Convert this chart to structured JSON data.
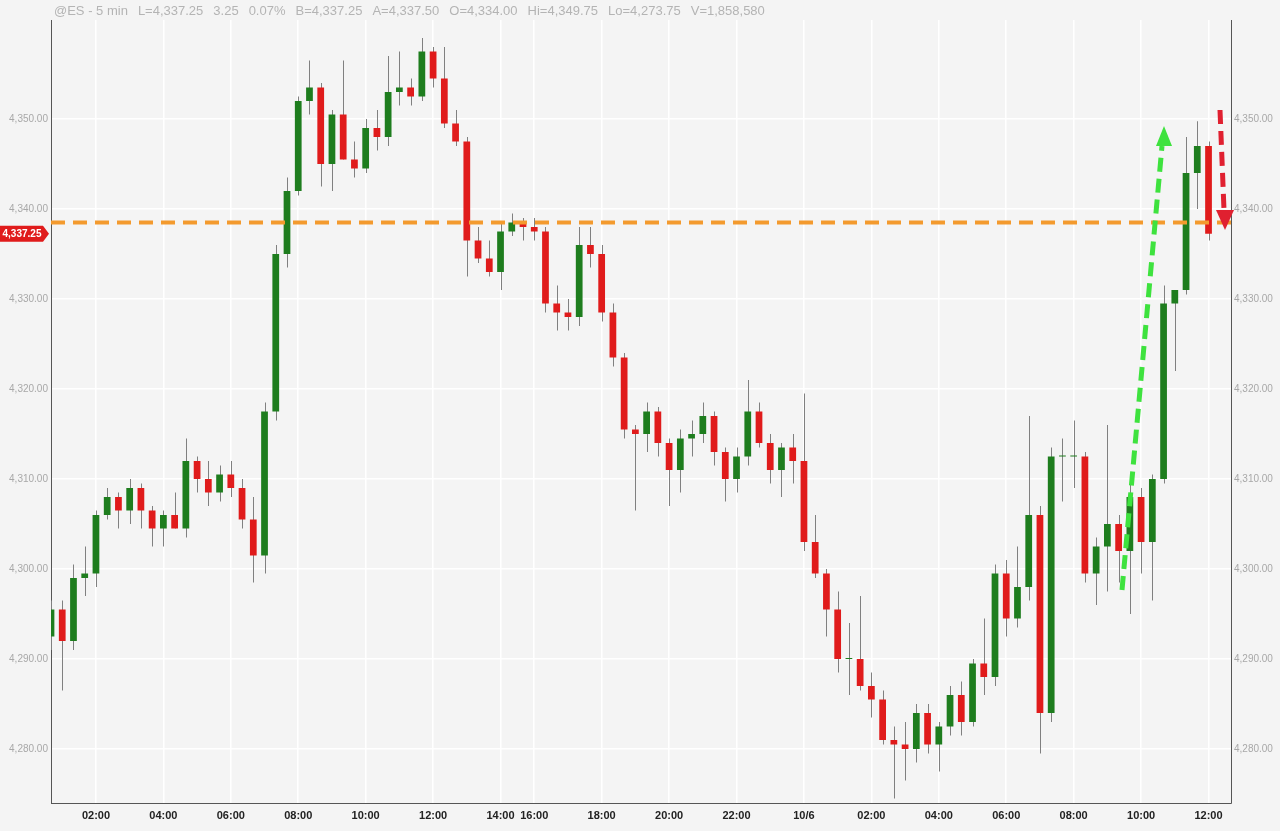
{
  "chart_data": {
    "type": "candlestick",
    "title": "@ES - 5 min",
    "annotations": [
      "L=4,337.25",
      "3.25",
      "0.07%",
      "B=4,337.25",
      "A=4,337.50",
      "O=4,334.00",
      "Hi=4,349.75",
      "Lo=4,273.75",
      "V=1,858,580",
      "4,337.25"
    ],
    "colors": [
      "#1e7d1e",
      "#e01b1b",
      "#1e7d1e",
      "#1e7d1e",
      "#1e7d1e",
      "#1e7d1e",
      "#e01b1b",
      "#1e7d1e",
      "#e01b1b",
      "#e01b1b",
      "#1e7d1e",
      "#e01b1b",
      "#1e7d1e",
      "#e01b1b",
      "#e01b1b",
      "#1e7d1e",
      "#e01b1b",
      "#e01b1b",
      "#e01b1b",
      "#1e7d1e",
      "#1e7d1e",
      "#1e7d1e",
      "#1e7d1e",
      "#1e7d1e",
      "#e01b1b",
      "#1e7d1e",
      "#e01b1b",
      "#e01b1b",
      "#1e7d1e",
      "#e01b1b",
      "#1e7d1e",
      "#1e7d1e",
      "#e01b1b",
      "#1e7d1e",
      "#e01b1b",
      "#e01b1b",
      "#e01b1b",
      "#e01b1b",
      "#e01b1b",
      "#e01b1b",
      "#1e7d1e",
      "#1e7d1e",
      "#e01b1b",
      "#e01b1b",
      "#e01b1b",
      "#e01b1b",
      "#e01b1b",
      "#1e7d1e",
      "#e01b1b",
      "#e01b1b",
      "#e01b1b",
      "#e01b1b",
      "#e01b1b",
      "#1e7d1e",
      "#e01b1b",
      "#e01b1b",
      "#1e7d1e",
      "#1e7d1e",
      "#1e7d1e",
      "#e01b1b",
      "#e01b1b",
      "#1e7d1e",
      "#1e7d1e",
      "#e01b1b",
      "#e01b1b",
      "#1e7d1e",
      "#e01b1b",
      "#e01b1b",
      "#e01b1b",
      "#e01b1b",
      "#e01b1b",
      "#1e7d1e",
      "#e01b1b",
      "#e01b1b",
      "#e01b1b",
      "#e01b1b",
      "#e01b1b",
      "#1e7d1e",
      "#e01b1b",
      "#1e7d1e",
      "#1e7d1e",
      "#e01b1b",
      "#1e7d1e",
      "#e01b1b",
      "#1e7d1e",
      "#e01b1b",
      "#1e7d1e",
      "#1e7d1e",
      "#e01b1b",
      "#1e7d1e",
      "#1e7d1e",
      "#1e7d1e",
      "#e01b1b",
      "#1e7d1e",
      "#1e7d1e",
      "#e01b1b",
      "#1e7d1e",
      "#e01b1b",
      "#1e7d1e",
      "#1e7d1e",
      "#1e7d1e",
      "#1e7d1e",
      "#1e7d1e",
      "#e01b1b",
      null,
      null
    ],
    "categories": [
      null,
      null,
      null,
      null,
      "02:00",
      null,
      null,
      null,
      null,
      null,
      "04:00",
      null,
      null,
      null,
      null,
      null,
      "06:00",
      null,
      null,
      null,
      null,
      null,
      "08:00",
      null,
      null,
      null,
      null,
      null,
      "10:00",
      null,
      null,
      null,
      null,
      null,
      "12:00",
      null,
      null,
      null,
      null,
      null,
      "14:00",
      null,
      null,
      "16:00",
      null,
      null,
      null,
      null,
      null,
      "18:00",
      null,
      null,
      null,
      null,
      null,
      "20:00",
      null,
      null,
      null,
      null,
      null,
      "22:00",
      null,
      null,
      null,
      null,
      null,
      "10/6",
      null,
      null,
      null,
      null,
      null,
      "02:00",
      null,
      null,
      null,
      null,
      null,
      "04:00",
      null,
      null,
      null,
      null,
      null,
      "06:00",
      null,
      null,
      null,
      null,
      null,
      "08:00",
      null,
      null,
      null,
      null,
      null,
      "10:00",
      null,
      null,
      null,
      null,
      null,
      "12:00",
      null,
      null
    ],
    "ohlc": [
      [
        4292.5,
        4296.5,
        4291,
        4295.5
      ],
      [
        4295.5,
        4296.5,
        4286.5,
        4292
      ],
      [
        4292,
        4300.5,
        4291,
        4299
      ],
      [
        4299,
        4302.5,
        4297,
        4299.5
      ],
      [
        4299.5,
        4306.5,
        4298,
        4306
      ],
      [
        4306,
        4309,
        4305.5,
        4308
      ],
      [
        4308,
        4308.5,
        4304.5,
        4306.5
      ],
      [
        4306.5,
        4310,
        4305,
        4309
      ],
      [
        4309,
        4309.5,
        4304.5,
        4306.5
      ],
      [
        4306.5,
        4307,
        4302.5,
        4304.5
      ],
      [
        4304.5,
        4306.5,
        4302.5,
        4306
      ],
      [
        4306,
        4308.5,
        4304.5,
        4304.5
      ],
      [
        4304.5,
        4314.5,
        4303.5,
        4312
      ],
      [
        4312,
        4312.5,
        4308.5,
        4310
      ],
      [
        4310,
        4312,
        4307,
        4308.5
      ],
      [
        4308.5,
        4311.5,
        4307.5,
        4310.5
      ],
      [
        4310.5,
        4312,
        4308,
        4309
      ],
      [
        4309,
        4310,
        4304.5,
        4305.5
      ],
      [
        4305.5,
        4308,
        4298.5,
        4301.5
      ],
      [
        4301.5,
        4318.5,
        4299.5,
        4317.5
      ],
      [
        4317.5,
        4336,
        4316.5,
        4335
      ],
      [
        4335,
        4343.5,
        4333.5,
        4342
      ],
      [
        4342,
        4352.5,
        4341.5,
        4352
      ],
      [
        4352,
        4356.5,
        4350.5,
        4353.5
      ],
      [
        4353.5,
        4354,
        4342.5,
        4345
      ],
      [
        4345,
        4351,
        4342,
        4350.5
      ],
      [
        4350.5,
        4356.5,
        4345.5,
        4345.5
      ],
      [
        4345.5,
        4347.5,
        4343.5,
        4344.5
      ],
      [
        4344.5,
        4350,
        4344,
        4349
      ],
      [
        4349,
        4351,
        4346.5,
        4348
      ],
      [
        4348,
        4357,
        4347,
        4353
      ],
      [
        4353,
        4357.5,
        4351.5,
        4353.5
      ],
      [
        4353.5,
        4354.5,
        4351.5,
        4352.5
      ],
      [
        4352.5,
        4359,
        4352,
        4357.5
      ],
      [
        4357.5,
        4358,
        4353.5,
        4354.5
      ],
      [
        4354.5,
        4358,
        4349,
        4349.5
      ],
      [
        4349.5,
        4351,
        4347,
        4347.5
      ],
      [
        4347.5,
        4348,
        4332.5,
        4336.5
      ],
      [
        4336.5,
        4338,
        4334,
        4334.5
      ],
      [
        4334.5,
        4336.5,
        4332.5,
        4333
      ],
      [
        4333,
        4338.5,
        4331,
        4337.5
      ],
      [
        4337.5,
        4339.5,
        4337,
        4338.5
      ],
      [
        4338.5,
        4339,
        4336.5,
        4338
      ],
      [
        4338,
        4339,
        4336.5,
        4337.5
      ],
      [
        4337.5,
        4338,
        4328.5,
        4329.5
      ],
      [
        4329.5,
        4331.5,
        4326.5,
        4328.5
      ],
      [
        4328.5,
        4330,
        4326.5,
        4328
      ],
      [
        4328,
        4338,
        4327,
        4336
      ],
      [
        4336,
        4338,
        4333.5,
        4335
      ],
      [
        4335,
        4336,
        4327.5,
        4328.5
      ],
      [
        4328.5,
        4329.5,
        4322.5,
        4323.5
      ],
      [
        4323.5,
        4324,
        4314.5,
        4315.5
      ],
      [
        4315.5,
        4316,
        4306.5,
        4315
      ],
      [
        4315,
        4318.5,
        4313,
        4317.5
      ],
      [
        4317.5,
        4318,
        4312.5,
        4314
      ],
      [
        4314,
        4314.5,
        4307,
        4311
      ],
      [
        4311,
        4315.5,
        4308.5,
        4314.5
      ],
      [
        4314.5,
        4316.5,
        4312.5,
        4315
      ],
      [
        4315,
        4318.5,
        4314,
        4317
      ],
      [
        4317,
        4317.5,
        4311.5,
        4313
      ],
      [
        4313,
        4313.5,
        4307.5,
        4310
      ],
      [
        4310,
        4313.5,
        4308.5,
        4312.5
      ],
      [
        4312.5,
        4321,
        4311.5,
        4317.5
      ],
      [
        4317.5,
        4318.5,
        4313.5,
        4314
      ],
      [
        4314,
        4315,
        4309.5,
        4311
      ],
      [
        4311,
        4314,
        4308,
        4313.5
      ],
      [
        4313.5,
        4315,
        4309.5,
        4312
      ],
      [
        4312,
        4319.5,
        4302,
        4303
      ],
      [
        4303,
        4306,
        4299,
        4299.5
      ],
      [
        4299.5,
        4300,
        4292.5,
        4295.5
      ],
      [
        4295.5,
        4297.5,
        4288.5,
        4290
      ],
      [
        4290,
        4294,
        4286,
        4290
      ],
      [
        4290,
        4297,
        4286.5,
        4287
      ],
      [
        4287,
        4288.5,
        4283.5,
        4285.5
      ],
      [
        4285.5,
        4286.5,
        4280.5,
        4281
      ],
      [
        4281,
        4282.5,
        4274.5,
        4280.5
      ],
      [
        4280.5,
        4283,
        4276.5,
        4280
      ],
      [
        4280,
        4285,
        4278.5,
        4284
      ],
      [
        4284,
        4285,
        4279.5,
        4280.5
      ],
      [
        4280.5,
        4283,
        4277.5,
        4282.5
      ],
      [
        4282.5,
        4287,
        4281.5,
        4286
      ],
      [
        4286,
        4287.5,
        4281.5,
        4283
      ],
      [
        4283,
        4290,
        4282.5,
        4289.5
      ],
      [
        4289.5,
        4294.5,
        4286,
        4288
      ],
      [
        4288,
        4300.5,
        4287,
        4299.5
      ],
      [
        4299.5,
        4301,
        4292.5,
        4294.5
      ],
      [
        4294.5,
        4302.5,
        4293.5,
        4298
      ],
      [
        4298,
        4317,
        4296.5,
        4306
      ],
      [
        4306,
        4307,
        4279.5,
        4284
      ],
      [
        4284,
        4313.5,
        4283,
        4312.5
      ],
      [
        4312.5,
        4314.5,
        4307.5,
        4312.5
      ],
      [
        4312.5,
        4316.5,
        4309,
        4312.5
      ],
      [
        4312.5,
        4313,
        4298.5,
        4299.5
      ],
      [
        4299.5,
        4303.5,
        4296,
        4302.5
      ],
      [
        4302.5,
        4316,
        4297.5,
        4305
      ],
      [
        4305,
        4306,
        4298.5,
        4302
      ],
      [
        4302,
        4309.5,
        4295,
        4308
      ],
      [
        4308,
        4309,
        4299.5,
        4303
      ],
      [
        4303,
        4310.5,
        4296.5,
        4310
      ],
      [
        4310,
        4331.5,
        4309.5,
        4329.5
      ],
      [
        4329.5,
        4331,
        4322,
        4331
      ],
      [
        4331,
        4348,
        4330.5,
        4344
      ],
      [
        4344,
        4349.75,
        4340,
        4347
      ],
      [
        4347,
        4347.5,
        4336.5,
        4337.25
      ],
      null,
      null
    ],
    "ylim": [
      4274,
      4361
    ],
    "yticks": [
      {
        "value": 4280,
        "label": "4,280.00"
      },
      {
        "value": 4290,
        "label": "4,290.00"
      },
      {
        "value": 4300,
        "label": "4,300.00"
      },
      {
        "value": 4310,
        "label": "4,310.00"
      },
      {
        "value": 4320,
        "label": "4,320.00"
      },
      {
        "value": 4330,
        "label": "4,330.00"
      },
      {
        "value": 4340,
        "label": "4,340.00"
      },
      {
        "value": 4350,
        "label": "4,350.00"
      }
    ],
    "y2lim": [
      4274,
      4361
    ],
    "y2ticks": [
      {
        "value": 4280,
        "label": "4,280.00"
      },
      {
        "value": 4290,
        "label": "4,290.00"
      },
      {
        "value": 4300,
        "label": "4,300.00"
      },
      {
        "value": 4310,
        "label": "4,310.00"
      },
      {
        "value": 4320,
        "label": "4,320.00"
      },
      {
        "value": 4330,
        "label": "4,330.00"
      },
      {
        "value": 4340,
        "label": "4,340.00"
      },
      {
        "value": 4350,
        "label": "4,350.00"
      }
    ],
    "ref_lines": [
      {
        "axis": "y",
        "value": 4338.5,
        "color": "#f39a2e",
        "line_style": "dashed"
      }
    ],
    "grid": true,
    "legend": false
  }
}
